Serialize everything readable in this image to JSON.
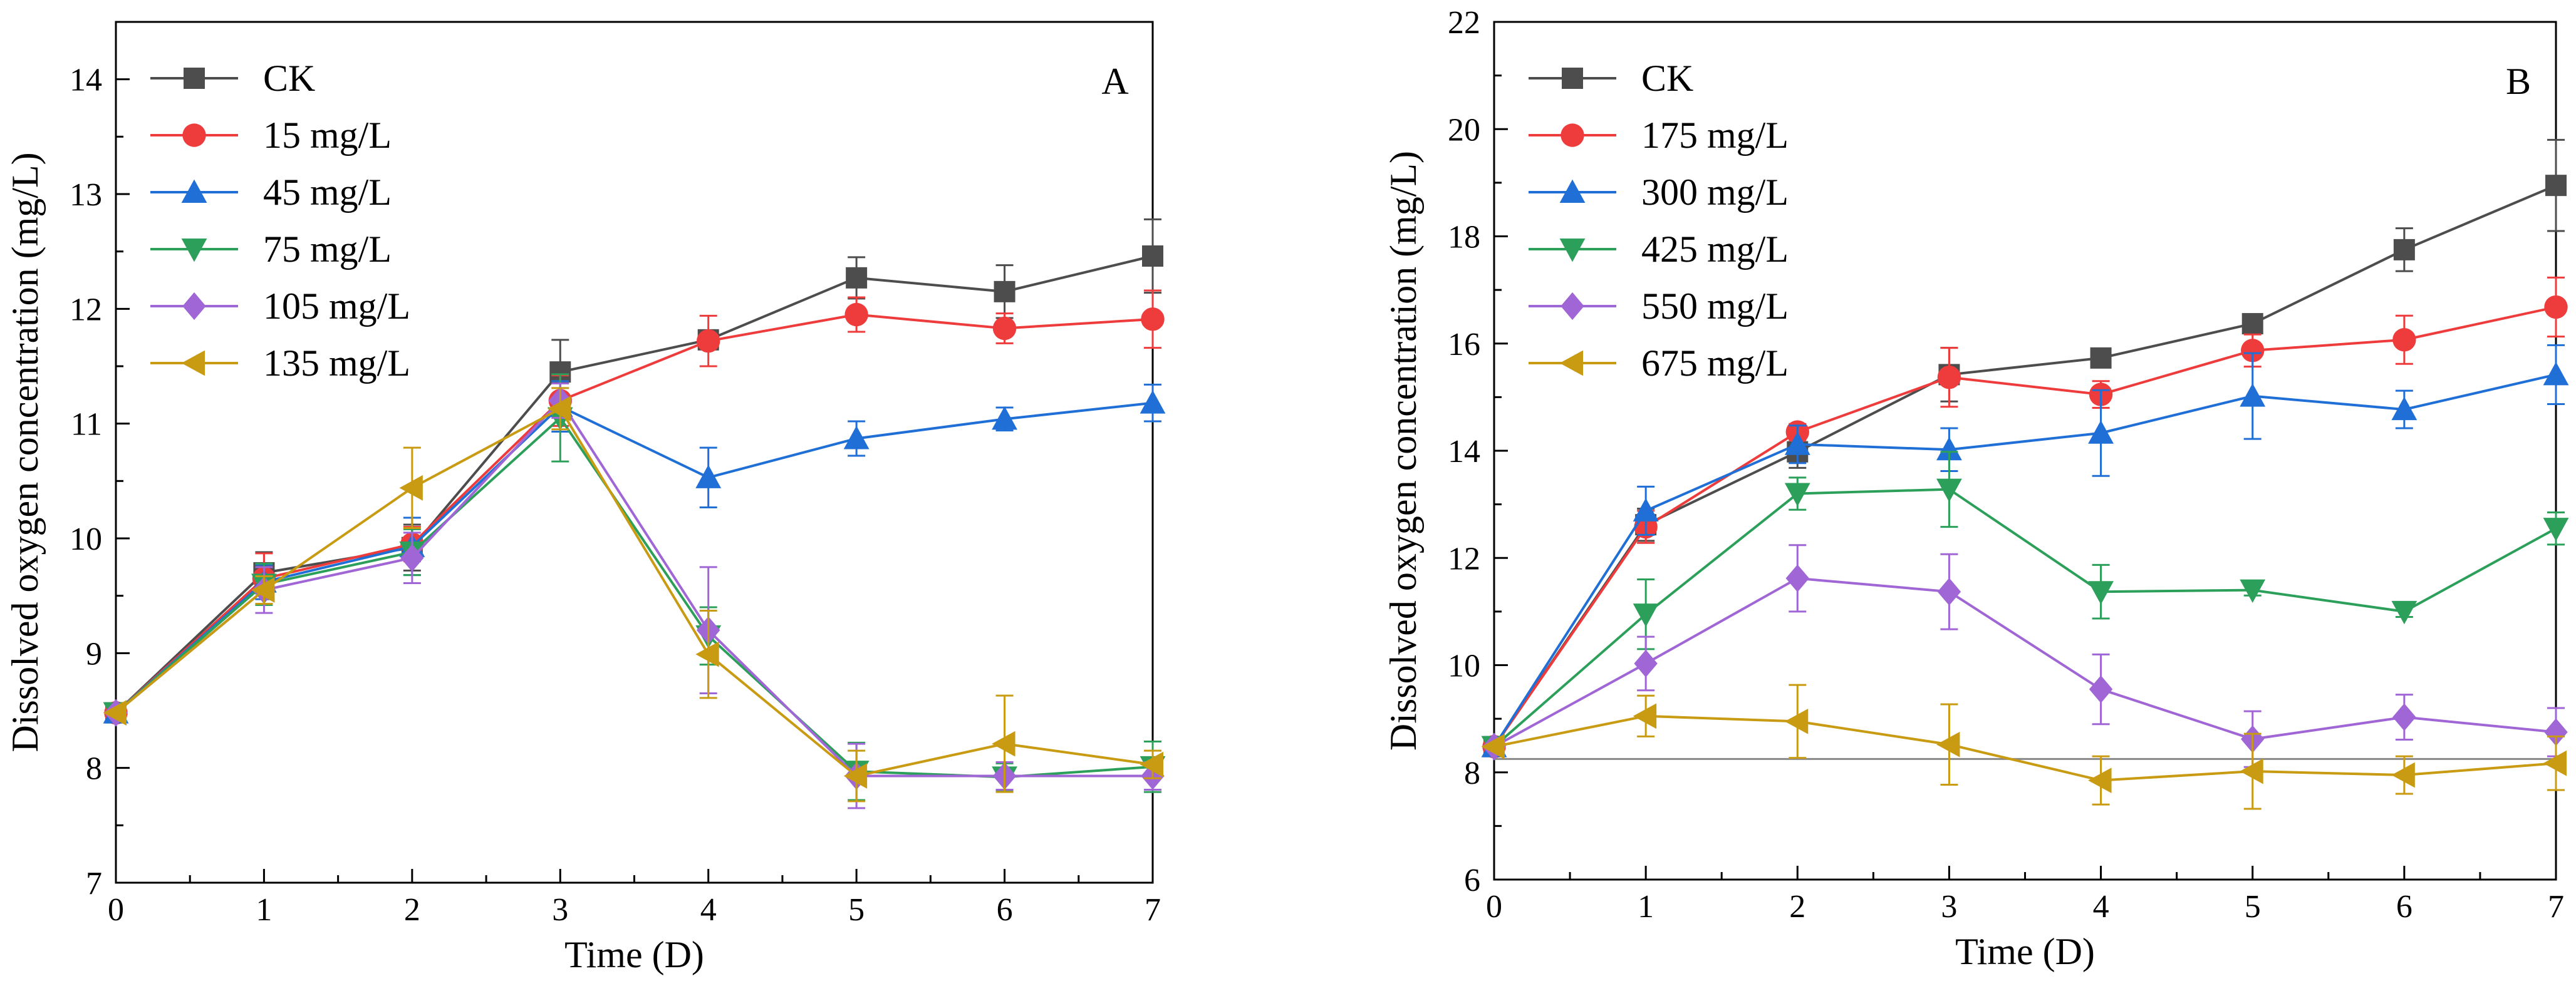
{
  "chart_data": [
    {
      "type": "line",
      "panel_label": "A",
      "xlabel": "Time (D)",
      "ylabel": "Dissolved oxygen concentration (mg/L)",
      "xlim": [
        0,
        7
      ],
      "ylim": [
        7,
        14.5
      ],
      "x_ticks": [
        0,
        1,
        2,
        3,
        4,
        5,
        6,
        7
      ],
      "y_ticks": [
        7,
        8,
        9,
        10,
        11,
        12,
        13,
        14
      ],
      "legend_position": "top-left",
      "x": [
        0,
        1,
        2,
        3,
        4,
        5,
        6,
        7
      ],
      "series": [
        {
          "name": "CK",
          "color": "#4d4d4d",
          "marker": "square",
          "values": [
            8.48,
            9.7,
            9.92,
            11.45,
            11.73,
            12.27,
            12.15,
            12.46
          ],
          "errors": [
            0.05,
            0.18,
            0.2,
            0.28,
            0.08,
            0.18,
            0.23,
            0.32
          ]
        },
        {
          "name": "15 mg/L",
          "color": "#ee3b3b",
          "marker": "circle",
          "values": [
            8.48,
            9.65,
            9.95,
            11.2,
            11.72,
            11.95,
            11.83,
            11.91
          ],
          "errors": [
            0.05,
            0.22,
            0.15,
            0.22,
            0.22,
            0.15,
            0.13,
            0.25
          ]
        },
        {
          "name": "45 mg/L",
          "color": "#1f6fd6",
          "marker": "triangle-up",
          "values": [
            8.48,
            9.62,
            9.93,
            11.15,
            10.53,
            10.87,
            11.04,
            11.18
          ],
          "errors": [
            0.05,
            0.15,
            0.25,
            0.22,
            0.26,
            0.15,
            0.1,
            0.16
          ]
        },
        {
          "name": "75 mg/L",
          "color": "#2ca05a",
          "marker": "triangle-down",
          "values": [
            8.48,
            9.6,
            9.88,
            11.05,
            9.15,
            7.97,
            7.92,
            8.01
          ],
          "errors": [
            0.05,
            0.18,
            0.2,
            0.38,
            0.25,
            0.25,
            0.12,
            0.22
          ]
        },
        {
          "name": "105 mg/L",
          "color": "#a066d6",
          "marker": "diamond",
          "values": [
            8.48,
            9.55,
            9.83,
            11.2,
            9.2,
            7.93,
            7.93,
            7.93
          ],
          "errors": [
            0.05,
            0.2,
            0.22,
            0.15,
            0.55,
            0.28,
            0.12,
            0.12
          ]
        },
        {
          "name": "135 mg/L",
          "color": "#c89b12",
          "marker": "triangle-left",
          "values": [
            8.48,
            9.55,
            10.44,
            11.13,
            8.99,
            7.93,
            8.21,
            8.03
          ],
          "errors": [
            0.05,
            0.12,
            0.35,
            0.18,
            0.38,
            0.22,
            0.42,
            0.12
          ]
        }
      ]
    },
    {
      "type": "line",
      "panel_label": "B",
      "xlabel": "Time (D)",
      "ylabel": "Dissolved oxygen concentration (mg/L)",
      "xlim": [
        0,
        7
      ],
      "ylim": [
        6,
        22
      ],
      "x_ticks": [
        0,
        1,
        2,
        3,
        4,
        5,
        6,
        7
      ],
      "y_ticks": [
        6,
        8,
        10,
        12,
        14,
        16,
        18,
        20,
        22
      ],
      "reference_line_y": 8.25,
      "legend_position": "top-left",
      "x": [
        0,
        1,
        2,
        3,
        4,
        5,
        6,
        7
      ],
      "series": [
        {
          "name": "CK",
          "color": "#4d4d4d",
          "marker": "square",
          "values": [
            8.48,
            12.62,
            13.98,
            15.42,
            15.73,
            16.37,
            17.75,
            18.95
          ],
          "errors": [
            0.05,
            0.3,
            0.3,
            0.5,
            0.1,
            0.15,
            0.4,
            0.85
          ]
        },
        {
          "name": "175 mg/L",
          "color": "#ee3b3b",
          "marker": "circle",
          "values": [
            8.48,
            12.58,
            14.35,
            15.37,
            15.05,
            15.87,
            16.07,
            16.68
          ],
          "errors": [
            0.05,
            0.3,
            0.15,
            0.55,
            0.25,
            0.3,
            0.45,
            0.55
          ]
        },
        {
          "name": "300 mg/L",
          "color": "#1f6fd6",
          "marker": "triangle-up",
          "values": [
            8.48,
            12.88,
            14.12,
            14.02,
            14.33,
            15.02,
            14.77,
            15.42
          ],
          "errors": [
            0.05,
            0.45,
            0.35,
            0.4,
            0.8,
            0.8,
            0.35,
            0.55
          ]
        },
        {
          "name": "425 mg/L",
          "color": "#2ca05a",
          "marker": "triangle-down",
          "values": [
            8.48,
            10.95,
            13.2,
            13.28,
            11.37,
            11.4,
            11.0,
            12.55
          ],
          "errors": [
            0.05,
            0.65,
            0.3,
            0.7,
            0.5,
            0.1,
            0.1,
            0.3
          ]
        },
        {
          "name": "550 mg/L",
          "color": "#a066d6",
          "marker": "diamond",
          "values": [
            8.48,
            10.03,
            11.62,
            11.37,
            9.55,
            8.62,
            9.03,
            8.75
          ],
          "errors": [
            0.05,
            0.5,
            0.62,
            0.7,
            0.65,
            0.52,
            0.42,
            0.45
          ]
        },
        {
          "name": "675 mg/L",
          "color": "#c89b12",
          "marker": "triangle-left",
          "values": [
            8.48,
            9.05,
            8.95,
            8.52,
            7.85,
            8.02,
            7.95,
            8.17
          ],
          "errors": [
            0.05,
            0.38,
            0.68,
            0.75,
            0.45,
            0.7,
            0.35,
            0.5
          ]
        }
      ]
    }
  ]
}
